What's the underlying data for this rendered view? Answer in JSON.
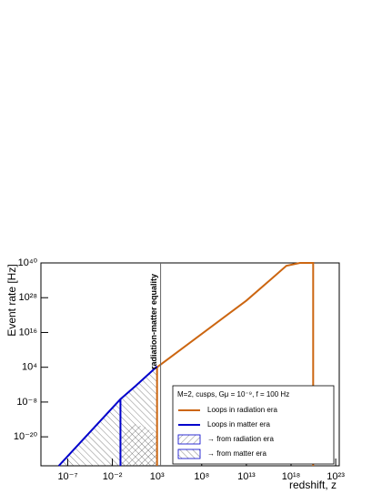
{
  "chart_data": {
    "type": "line",
    "x_label": "redshift, z",
    "y_label": "Event rate [Hz]",
    "log_x": true,
    "log_y": true,
    "xlim": [
      1e-10,
      2.5e+23
    ],
    "ylim": [
      1e-30,
      1e+40
    ],
    "xticks": [
      {
        "value": 1e-07,
        "label": "10⁻⁷"
      },
      {
        "value": 0.01,
        "label": "10⁻²"
      },
      {
        "value": 1000.0,
        "label": "10³"
      },
      {
        "value": 100000000.0,
        "label": "10⁸"
      },
      {
        "value": 10000000000000.0,
        "label": "10¹³"
      },
      {
        "value": 1e+18,
        "label": "10¹⁸"
      },
      {
        "value": 1e+23,
        "label": "10²³"
      }
    ],
    "yticks": [
      {
        "value": 1e+40,
        "label": "10⁴⁰"
      },
      {
        "value": 1e+28,
        "label": "10²⁸"
      },
      {
        "value": 1e+16,
        "label": "10¹⁶"
      },
      {
        "value": 10000.0,
        "label": "10⁴"
      },
      {
        "value": 1e-08,
        "label": "10⁻⁸"
      },
      {
        "value": 1e-20,
        "label": "10⁻²⁰"
      }
    ],
    "annotations": [
      {
        "text": "radiation-matter equality",
        "x": 2500
      }
    ],
    "legend": "lower right",
    "legend_title": "M=2, cusps, Gμ = 10⁻⁹, f = 100 Hz",
    "series": [
      {
        "name": "Loops in radiation era",
        "color": "#cc6611",
        "style": "line",
        "x": [
          1000.0,
          1000.0,
          10000000000000.0,
          1e+16,
          3e+17,
          1e+19,
          3e+20,
          3e+20
        ],
        "values": [
          1e-30,
          10000.0,
          1e+27,
          1e+35,
          1e+39,
          1e+40,
          1e+40,
          1e-30
        ]
      },
      {
        "name": "Loops in matter era",
        "color": "#0000cc",
        "style": "line",
        "x": [
          1e-08,
          0.08,
          4.5,
          1000.0,
          null,
          0.08,
          0.08
        ],
        "values": [
          1e-30,
          1e-07,
          0.005,
          20000.0,
          null,
          1e-30,
          1e-07
        ]
      },
      {
        "name": "→ from radiation era",
        "color": "#0000cc",
        "style": "hatch",
        "hatch": "forward",
        "x": [
          0.08,
          2.8,
          50,
          1000.0
        ],
        "values": [
          2e-19,
          3e-16,
          2e-17,
          5e-20
        ]
      },
      {
        "name": "→ from matter era",
        "color": "#0000cc",
        "style": "hatch",
        "hatch": "backward",
        "x": [
          1e-08,
          0.08,
          4.5,
          1000.0
        ],
        "values": [
          1e-30,
          1e-07,
          0.005,
          20000.0
        ]
      }
    ]
  }
}
